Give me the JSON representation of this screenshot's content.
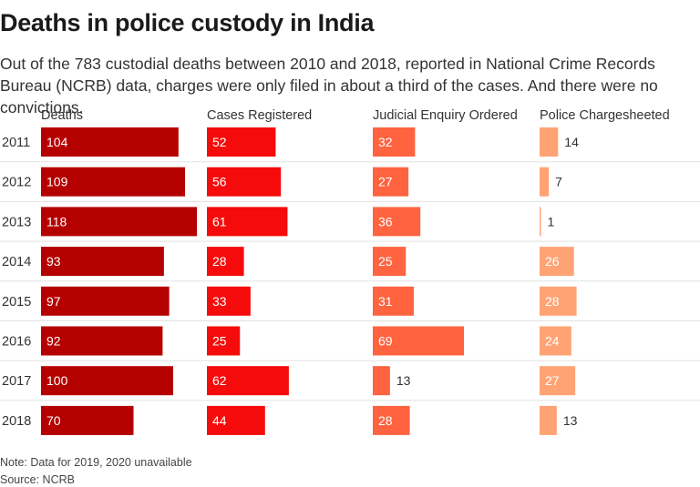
{
  "header": {
    "title": "Deaths in police custody in India",
    "subtitle": "Out of the 783 custodial deaths between 2010 and 2018, reported in National Crime Records Bureau (NCRB) data, charges were only filed in about a third of the cases. And there were no convictions."
  },
  "footer": {
    "note": "Note: Data for 2019, 2020 unavailable",
    "source": "Source: NCRB"
  },
  "chart_data": {
    "type": "bar",
    "orientation": "horizontal",
    "layout": "small-multiples",
    "categories": [
      "2011",
      "2012",
      "2013",
      "2014",
      "2015",
      "2016",
      "2017",
      "2018"
    ],
    "series": [
      {
        "name": "Deaths",
        "values": [
          104,
          109,
          118,
          93,
          97,
          92,
          100,
          70
        ],
        "color": "#b50000"
      },
      {
        "name": "Cases Registered",
        "values": [
          52,
          56,
          61,
          28,
          33,
          25,
          62,
          44
        ],
        "color": "#f50b0b"
      },
      {
        "name": "Judicial Enquiry Ordered",
        "values": [
          32,
          27,
          36,
          25,
          31,
          69,
          13,
          28
        ],
        "color": "#ff6340"
      },
      {
        "name": "Police Chargesheeted",
        "values": [
          14,
          7,
          1,
          26,
          28,
          24,
          27,
          13
        ],
        "color": "#ffa375"
      }
    ],
    "grid": "horizontal row separators",
    "legend": "column headers"
  }
}
